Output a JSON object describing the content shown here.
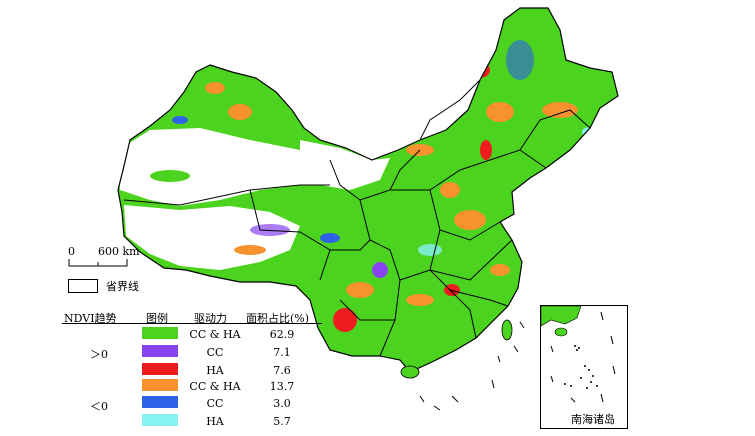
{
  "scale_bar": {
    "zero": "0",
    "distance": "600 km"
  },
  "boundary_legend": {
    "label": "省界线"
  },
  "legend": {
    "headers": {
      "trend": "NDVI趋势",
      "symbol": "图例",
      "driver": "驱动力",
      "share": "面积占比(%)"
    },
    "groups": [
      {
        "trend": "＞0",
        "rows": [
          {
            "driver": "CC & HA",
            "share": "62.9",
            "color": "#4cd31f"
          },
          {
            "driver": "CC",
            "share": "7.1",
            "color": "#8844f2"
          },
          {
            "driver": "HA",
            "share": "7.6",
            "color": "#ee1c1c"
          }
        ]
      },
      {
        "trend": "＜0",
        "rows": [
          {
            "driver": "CC & HA",
            "share": "13.7",
            "color": "#f7922e"
          },
          {
            "driver": "CC",
            "share": "3.0",
            "color": "#2e63e8"
          },
          {
            "driver": "HA",
            "share": "5.7",
            "color": "#86f4f2"
          }
        ]
      }
    ]
  },
  "inset": {
    "label": "南海诸岛"
  },
  "colors": {
    "green": "#4cd31f",
    "purple": "#8844f2",
    "red": "#ee1c1c",
    "orange": "#f7922e",
    "blue": "#2e63e8",
    "cyan": "#86f4f2",
    "boundary": "#000000"
  }
}
